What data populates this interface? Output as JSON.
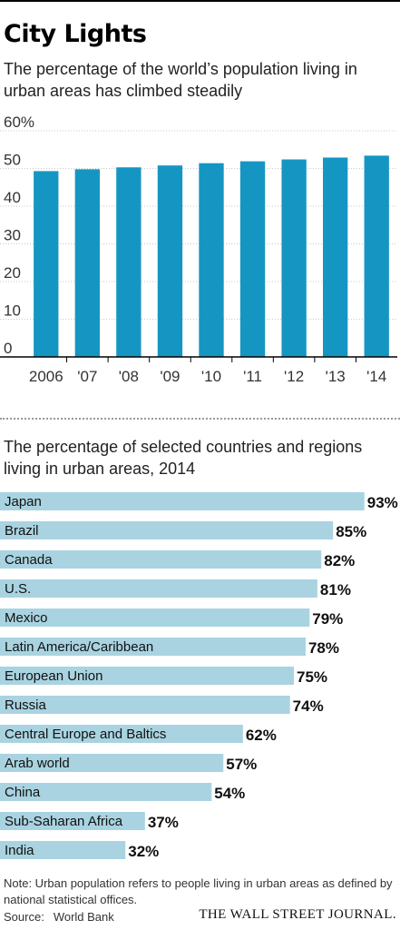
{
  "header": {
    "title": "City Lights",
    "subtitle": "The percentage of the world’s population living in urban areas has climbed steadily"
  },
  "chart_data": [
    {
      "type": "bar",
      "title": "",
      "categories": [
        "2006",
        "'07",
        "'08",
        "'09",
        "'10",
        "'11",
        "'12",
        "'13",
        "'14"
      ],
      "values": [
        49.3,
        49.8,
        50.3,
        50.8,
        51.4,
        51.9,
        52.4,
        52.9,
        53.4
      ],
      "ylim": [
        0,
        60
      ],
      "yticks": [
        "0",
        "10",
        "20",
        "30",
        "40",
        "50",
        "60%"
      ],
      "xlabel": "",
      "ylabel": "",
      "grid": true,
      "color": "#1596c2"
    },
    {
      "type": "bar",
      "orientation": "horizontal",
      "title": "The percentage of selected countries and regions living in urban areas, 2014",
      "categories": [
        "Japan",
        "Brazil",
        "Canada",
        "U.S.",
        "Mexico",
        "Latin America/Caribbean",
        "European Union",
        "Russia",
        "Central Europe and Baltics",
        "Arab world",
        "China",
        "Sub-Saharan Africa",
        "India"
      ],
      "values": [
        93,
        85,
        82,
        81,
        79,
        78,
        75,
        74,
        62,
        57,
        54,
        37,
        32
      ],
      "value_labels": [
        "93%",
        "85%",
        "82%",
        "81%",
        "79%",
        "78%",
        "75%",
        "74%",
        "62%",
        "57%",
        "54%",
        "37%",
        "32%"
      ],
      "xlim": [
        0,
        100
      ],
      "color": "#a9d3e1"
    }
  ],
  "footer": {
    "note": "Note: Urban population refers to people living in urban areas as defined by national statistical offices.",
    "source_label": "Source:",
    "source": "World Bank",
    "publisher": "THE WALL STREET JOURNAL."
  }
}
